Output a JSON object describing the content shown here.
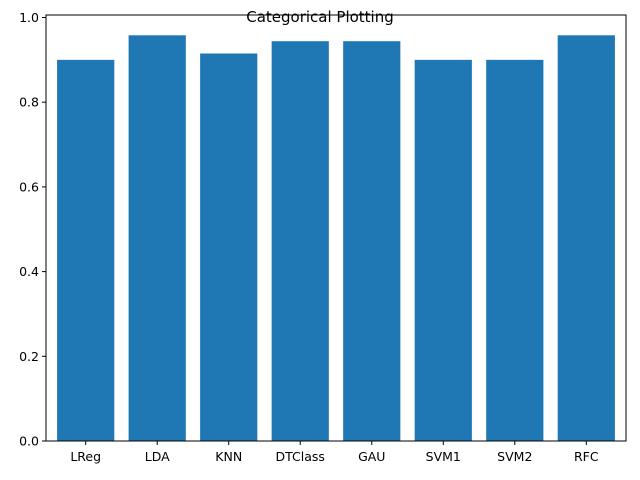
{
  "chart_data": {
    "type": "bar",
    "title": "Categorical Plotting",
    "xlabel": "",
    "ylabel": "",
    "categories": [
      "LReg",
      "LDA",
      "KNN",
      "DTClass",
      "GAU",
      "SVM1",
      "SVM2",
      "RFC"
    ],
    "values": [
      0.9,
      0.958,
      0.915,
      0.944,
      0.944,
      0.9,
      0.9,
      0.958
    ],
    "ylim": [
      0.0,
      1.0
    ],
    "yticks": [
      "0.0",
      "0.2",
      "0.4",
      "0.6",
      "0.8",
      "1.0"
    ],
    "grid": false,
    "bar_color": "#1f77b4"
  }
}
